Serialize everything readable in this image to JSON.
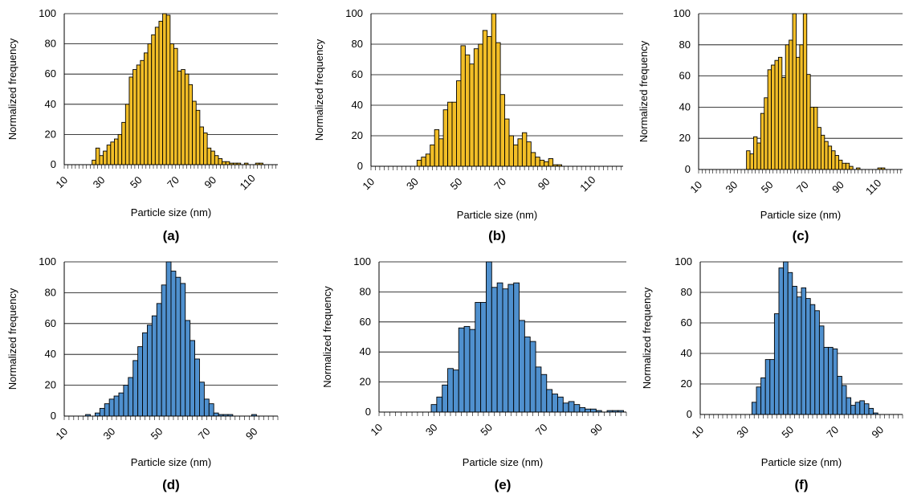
{
  "colors": {
    "panel_top": "#F2BE27",
    "panel_bottom": "#4F90CE",
    "edge": "#000000",
    "grid": "#000000"
  },
  "chart_data": [
    {
      "type": "bar",
      "panel_label": "(a)",
      "color": "#F2BE27",
      "xlabel": "Particle size (nm)",
      "ylabel": "Normalized frequency",
      "xlim": [
        10,
        125
      ],
      "ylim": [
        0,
        100
      ],
      "bin_width": 2,
      "x_ticks": [
        "10",
        "30",
        "50",
        "70",
        "90",
        "110"
      ],
      "y_ticks": [
        "0",
        "20",
        "40",
        "60",
        "80",
        "100"
      ],
      "x": [
        26,
        28,
        30,
        32,
        34,
        36,
        38,
        40,
        42,
        44,
        46,
        48,
        50,
        52,
        54,
        56,
        58,
        60,
        62,
        64,
        66,
        68,
        70,
        72,
        74,
        76,
        78,
        80,
        82,
        84,
        86,
        88,
        90,
        92,
        94,
        96,
        98,
        100,
        102,
        104,
        106,
        108,
        110,
        112,
        114,
        116
      ],
      "values": [
        3,
        11,
        6,
        9,
        13,
        15,
        17,
        20,
        28,
        40,
        58,
        63,
        66,
        69,
        74,
        80,
        86,
        91,
        95,
        100,
        99,
        80,
        77,
        62,
        63,
        60,
        53,
        42,
        36,
        25,
        21,
        11,
        9,
        6,
        4,
        2,
        2,
        1,
        1,
        1,
        0,
        1,
        0,
        0,
        1,
        1
      ]
    },
    {
      "type": "bar",
      "panel_label": "(b)",
      "color": "#F2BE27",
      "xlabel": "Particle size (nm)",
      "ylabel": "Normalized frequency",
      "xlim": [
        10,
        125
      ],
      "ylim": [
        0,
        100
      ],
      "bin_width": 2,
      "x_ticks": [
        "10",
        "30",
        "50",
        "70",
        "90",
        "110"
      ],
      "y_ticks": [
        "0",
        "20",
        "40",
        "60",
        "80",
        "100"
      ],
      "x": [
        32,
        34,
        36,
        38,
        40,
        42,
        44,
        46,
        48,
        50,
        52,
        54,
        56,
        58,
        60,
        62,
        64,
        66,
        68,
        70,
        72,
        74,
        76,
        78,
        80,
        82,
        84,
        86,
        88,
        90,
        92,
        94,
        96
      ],
      "values": [
        4,
        6,
        8,
        14,
        24,
        18,
        37,
        42,
        42,
        56,
        79,
        73,
        67,
        77,
        80,
        89,
        85,
        100,
        81,
        47,
        31,
        20,
        14,
        18,
        22,
        16,
        9,
        6,
        4,
        3,
        5,
        1,
        1
      ]
    },
    {
      "type": "bar",
      "panel_label": "(c)",
      "color": "#F2BE27",
      "xlabel": "Particle size (nm)",
      "ylabel": "Normalized frequency",
      "xlim": [
        10,
        125
      ],
      "ylim": [
        0,
        100
      ],
      "bin_width": 2,
      "x_ticks": [
        "10",
        "30",
        "50",
        "70",
        "90",
        "110"
      ],
      "y_ticks": [
        "0",
        "20",
        "40",
        "60",
        "80",
        "100"
      ],
      "x": [
        38,
        40,
        42,
        44,
        46,
        48,
        50,
        52,
        54,
        56,
        58,
        60,
        62,
        64,
        66,
        68,
        70,
        72,
        74,
        76,
        78,
        80,
        82,
        84,
        86,
        88,
        90,
        92,
        94,
        96,
        98,
        100,
        102,
        104,
        106,
        108,
        110,
        112,
        114
      ],
      "values": [
        12,
        10,
        21,
        17,
        36,
        46,
        64,
        67,
        70,
        72,
        59,
        80,
        83,
        100,
        72,
        80,
        100,
        61,
        40,
        40,
        27,
        22,
        18,
        15,
        12,
        9,
        6,
        4,
        4,
        2,
        0,
        1,
        0,
        0,
        0,
        0,
        0,
        1,
        1
      ]
    },
    {
      "type": "bar",
      "panel_label": "(d)",
      "color": "#4F90CE",
      "xlabel": "Particle size (nm)",
      "ylabel": "Normalized frequency",
      "xlim": [
        10,
        100
      ],
      "ylim": [
        0,
        100
      ],
      "bin_width": 2,
      "x_ticks": [
        "10",
        "30",
        "50",
        "70",
        "90"
      ],
      "y_ticks": [
        "0",
        "20",
        "40",
        "60",
        "80",
        "100"
      ],
      "x": [
        20,
        22,
        24,
        26,
        28,
        30,
        32,
        34,
        36,
        38,
        40,
        42,
        44,
        46,
        48,
        50,
        52,
        54,
        56,
        58,
        60,
        62,
        64,
        66,
        68,
        70,
        72,
        74,
        76,
        78,
        80,
        82,
        84,
        86,
        88,
        90
      ],
      "values": [
        1,
        0,
        2,
        5,
        8,
        11,
        13,
        15,
        20,
        25,
        36,
        45,
        54,
        59,
        65,
        73,
        85,
        100,
        94,
        90,
        86,
        62,
        49,
        37,
        22,
        11,
        8,
        2,
        1,
        1,
        1,
        0,
        0,
        0,
        0,
        1
      ]
    },
    {
      "type": "bar",
      "panel_label": "(e)",
      "color": "#4F90CE",
      "xlabel": "Particle size (nm)",
      "ylabel": "Normalized frequency",
      "xlim": [
        10,
        100
      ],
      "ylim": [
        0,
        100
      ],
      "bin_width": 2,
      "x_ticks": [
        "10",
        "30",
        "50",
        "70",
        "90"
      ],
      "y_ticks": [
        "0",
        "20",
        "40",
        "60",
        "80",
        "100"
      ],
      "x": [
        30,
        32,
        34,
        36,
        38,
        40,
        42,
        44,
        46,
        48,
        50,
        52,
        54,
        56,
        58,
        60,
        62,
        64,
        66,
        68,
        70,
        72,
        74,
        76,
        78,
        80,
        82,
        84,
        86,
        88,
        90,
        92,
        94,
        96,
        98
      ],
      "values": [
        5,
        10,
        18,
        29,
        28,
        56,
        57,
        55,
        73,
        73,
        100,
        83,
        86,
        82,
        85,
        86,
        61,
        50,
        47,
        30,
        25,
        15,
        12,
        10,
        6,
        7,
        5,
        3,
        2,
        2,
        1,
        0,
        1,
        1,
        1
      ]
    },
    {
      "type": "bar",
      "panel_label": "(f)",
      "color": "#4F90CE",
      "xlabel": "Particle size (nm)",
      "ylabel": "Normalized frequency",
      "xlim": [
        10,
        100
      ],
      "ylim": [
        0,
        100
      ],
      "bin_width": 2,
      "x_ticks": [
        "10",
        "30",
        "50",
        "70",
        "90"
      ],
      "y_ticks": [
        "0",
        "20",
        "40",
        "60",
        "80",
        "100"
      ],
      "x": [
        34,
        36,
        38,
        40,
        42,
        44,
        46,
        48,
        50,
        52,
        54,
        56,
        58,
        60,
        62,
        64,
        66,
        68,
        70,
        72,
        74,
        76,
        78,
        80,
        82,
        84,
        86,
        88
      ],
      "values": [
        8,
        18,
        24,
        36,
        36,
        66,
        96,
        100,
        93,
        84,
        77,
        83,
        76,
        72,
        68,
        58,
        44,
        44,
        43,
        25,
        19,
        11,
        6,
        8,
        9,
        7,
        4,
        1
      ]
    }
  ]
}
